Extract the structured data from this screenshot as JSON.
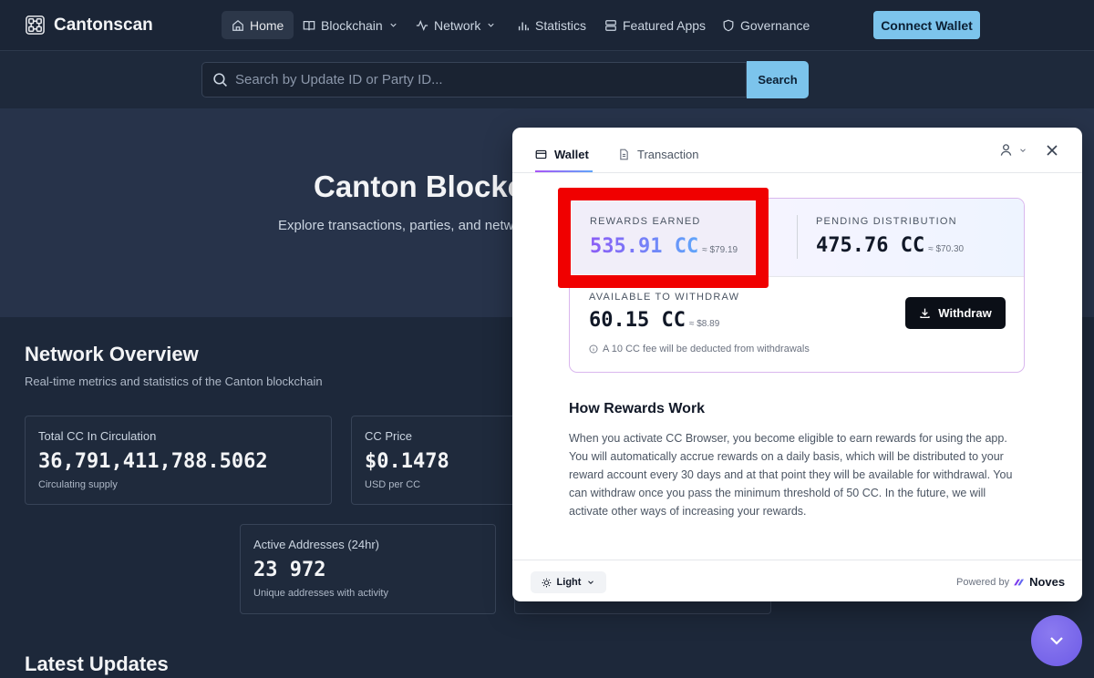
{
  "brand": {
    "name": "Cantonscan"
  },
  "nav": {
    "items": [
      {
        "label": "Home"
      },
      {
        "label": "Blockchain"
      },
      {
        "label": "Network"
      },
      {
        "label": "Statistics"
      },
      {
        "label": "Featured Apps"
      },
      {
        "label": "Governance"
      }
    ],
    "connect_label": "Connect Wallet"
  },
  "search": {
    "placeholder": "Search by Update ID or Party ID...",
    "button_label": "Search"
  },
  "hero": {
    "title": "Canton Blockc",
    "subtitle": "Explore transactions, parties, and netw"
  },
  "overview": {
    "title": "Network Overview",
    "subtitle": "Real-time metrics and statistics of the Canton blockchain",
    "cards": [
      {
        "label": "Total CC In Circulation",
        "value": "36,791,411,788.5062",
        "hint": "Circulating supply"
      },
      {
        "label": "CC Price",
        "value": "$0.1478",
        "hint": "USD per CC"
      },
      {
        "label": "Active Addresses (24hr)",
        "value": "23 972",
        "hint": "Unique addresses with activity"
      }
    ]
  },
  "latest_title": "Latest Updates",
  "modal": {
    "tabs": [
      {
        "label": "Wallet"
      },
      {
        "label": "Transaction"
      }
    ],
    "rewards_earned": {
      "label": "REWARDS EARNED",
      "amount": "535.91 CC",
      "approx": "≈ $79.19"
    },
    "pending": {
      "label": "PENDING DISTRIBUTION",
      "amount": "475.76 CC",
      "approx": "≈ $70.30"
    },
    "available": {
      "label": "AVAILABLE TO WITHDRAW",
      "amount": "60.15 CC",
      "approx": "≈ $8.89"
    },
    "withdraw_label": "Withdraw",
    "fee_note": "A 10 CC fee will be deducted from withdrawals",
    "how_title": "How Rewards Work",
    "how_text": "When you activate CC Browser, you become eligible to earn rewards for using the app. You will automatically accrue rewards on a daily basis, which will be distributed to your reward account every 30 days and at that point they will be available for withdrawal. You can withdraw once you pass the minimum threshold of 50 CC. In the future, we will activate other ways of increasing your rewards.",
    "theme_label": "Light",
    "powered_by": "Powered by",
    "powered_brand": "Noves"
  },
  "colors": {
    "accent": "#7cc4ec",
    "highlight": "#f00000",
    "background": "#1d283a"
  }
}
